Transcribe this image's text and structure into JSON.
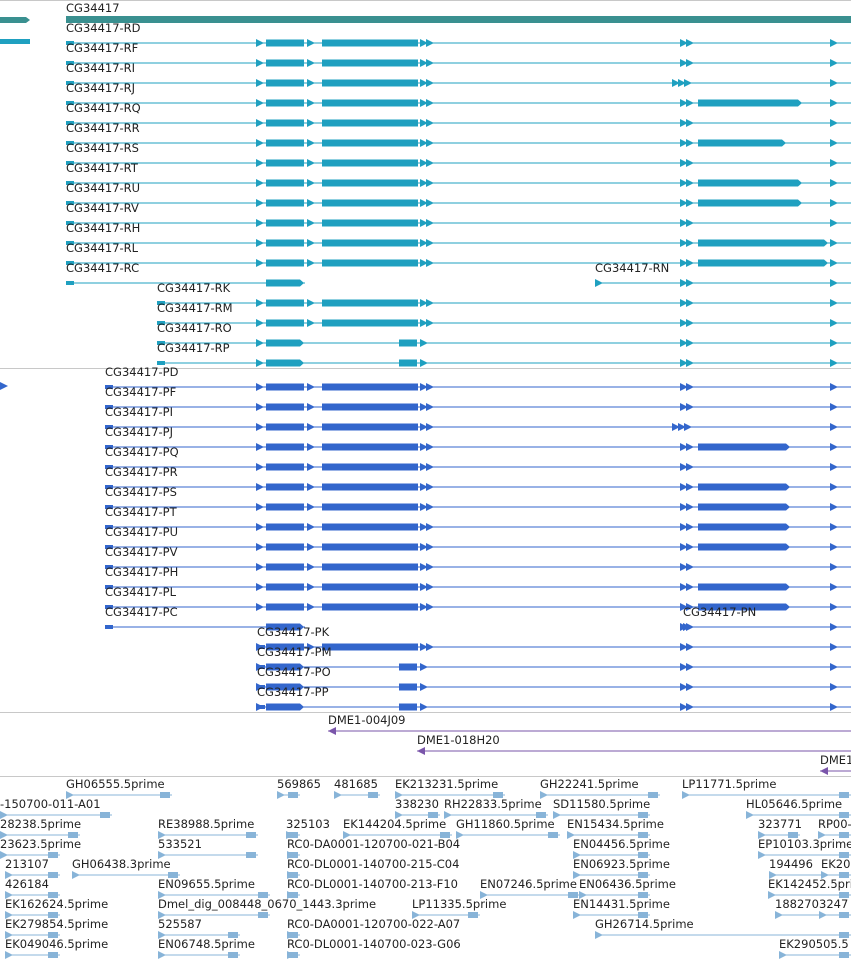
{
  "gene": {
    "label": "CG34417",
    "color": "#3a9090"
  },
  "colors": {
    "transcript": "#1fa0c0",
    "protein": "#3366cc",
    "clone": "#7a55aa",
    "est": "#88b4d8",
    "divider": "#c8c8c8"
  },
  "transcripts": [
    {
      "label": "CG34417-RD",
      "variant": "full"
    },
    {
      "label": "CG34417-RF",
      "variant": "full"
    },
    {
      "label": "CG34417-RI",
      "variant": "ri"
    },
    {
      "label": "CG34417-RJ",
      "variant": "long"
    },
    {
      "label": "CG34417-RQ",
      "variant": "none"
    },
    {
      "label": "CG34417-RR",
      "variant": "short"
    },
    {
      "label": "CG34417-RS",
      "variant": "full"
    },
    {
      "label": "CG34417-RT",
      "variant": "long"
    },
    {
      "label": "CG34417-RU",
      "variant": "long"
    },
    {
      "label": "CG34417-RV",
      "variant": "full"
    },
    {
      "label": "CG34417-RH",
      "variant": "longest"
    },
    {
      "label": "CG34417-RL",
      "variant": "longest"
    },
    {
      "label": "CG34417-RC",
      "variant": "rc"
    },
    {
      "label": "CG34417-RN",
      "variant": "rn"
    },
    {
      "label": "CG34417-RK",
      "variant": "full"
    },
    {
      "label": "CG34417-RM",
      "variant": "full"
    },
    {
      "label": "CG34417-RO",
      "variant": "ro"
    },
    {
      "label": "CG34417-RP",
      "variant": "ro"
    }
  ],
  "proteins": [
    {
      "label": "CG34417-PD",
      "variant": "full"
    },
    {
      "label": "CG34417-PF",
      "variant": "full"
    },
    {
      "label": "CG34417-PI",
      "variant": "ri"
    },
    {
      "label": "CG34417-PJ",
      "variant": "long"
    },
    {
      "label": "CG34417-PQ",
      "variant": "none"
    },
    {
      "label": "CG34417-PR",
      "variant": "long"
    },
    {
      "label": "CG34417-PS",
      "variant": "long"
    },
    {
      "label": "CG34417-PT",
      "variant": "long"
    },
    {
      "label": "CG34417-PU",
      "variant": "long"
    },
    {
      "label": "CG34417-PV",
      "variant": "full"
    },
    {
      "label": "CG34417-PH",
      "variant": "long"
    },
    {
      "label": "CG34417-PL",
      "variant": "long"
    },
    {
      "label": "CG34417-PC",
      "variant": "pc"
    },
    {
      "label": "CG34417-PN",
      "variant": "pn"
    },
    {
      "label": "CG34417-PK",
      "variant": "full"
    },
    {
      "label": "CG34417-PM",
      "variant": "pm"
    },
    {
      "label": "CG34417-PO",
      "variant": "pm"
    },
    {
      "label": "CG34417-PP",
      "variant": "pm"
    }
  ],
  "clones": [
    {
      "label": "DME1-004J09"
    },
    {
      "label": "DME1-018H20"
    },
    {
      "label": "DME1"
    }
  ],
  "ests": [
    "GH06555.5prime",
    "569865",
    "481685",
    "EK213231.5prime",
    "GH22241.5prime",
    "LP11771.5prime",
    "-150700-011-A01",
    "338230",
    "RH22833.5prime",
    "SD11580.5prime",
    "HL05646.5prime",
    "28238.5prime",
    "RE38988.5prime",
    "325103",
    "EK144204.5prime",
    "GH11860.5prime",
    "EN15434.5prime",
    "323771",
    "RP00-",
    "23623.5prime",
    "533521",
    "RC0-DA0001-120700-021-B04",
    "EN04456.5prime",
    "EP10103.3prime",
    "213107",
    "GH06438.3prime",
    "RC0-DL0001-140700-215-C04",
    "EN06923.5prime",
    "194496",
    "EK20",
    "426184",
    "EN09655.5prime",
    "RC0-DL0001-140700-213-F10",
    "EN07246.5prime",
    "EN06436.5prime",
    "EK142452.5prime",
    "EK162624.5prime",
    "Dmel_dig_008448_0670_1443.3prime",
    "LP11335.5prime",
    "EN14431.5prime",
    "188270",
    "3247",
    "EK279854.5prime",
    "525587",
    "RC0-DA0001-120700-022-A07",
    "GH26714.5prime",
    "EK049046.5prime",
    "EN06748.5prime",
    "RC0-DL0001-140700-023-G06",
    "EK290505.5"
  ]
}
